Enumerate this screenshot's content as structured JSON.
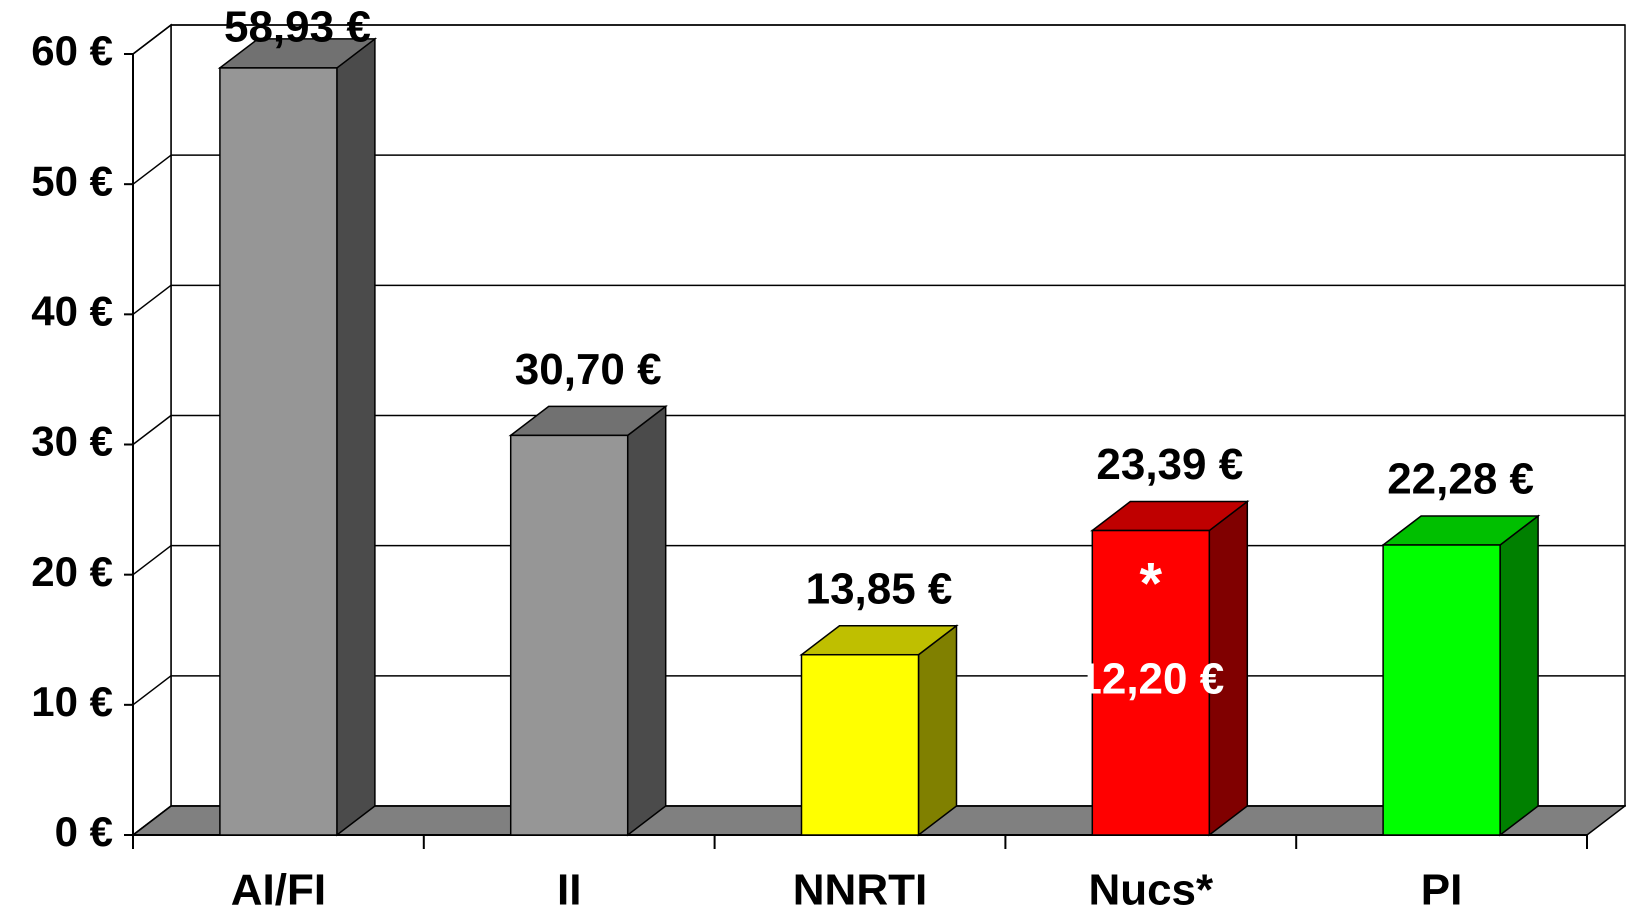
{
  "chart_data": {
    "type": "bar3d",
    "categories": [
      "AI/FI",
      "II",
      "NNRTI",
      "Nucs*",
      "PI"
    ],
    "values": [
      58.93,
      30.7,
      13.85,
      23.39,
      22.28
    ],
    "value_labels": [
      "58,93 €",
      "30,70 €",
      "13,85 €",
      "23,39 €",
      "22,28 €"
    ],
    "colors": [
      "#969696",
      "#969696",
      "#ffff00",
      "#ff0000",
      "#00ff00"
    ],
    "ylim": [
      0,
      60
    ],
    "yticks": [
      {
        "value": 0,
        "label": "0 €"
      },
      {
        "value": 10,
        "label": "10 €"
      },
      {
        "value": 20,
        "label": "20 €"
      },
      {
        "value": 30,
        "label": "30 €"
      },
      {
        "value": 40,
        "label": "40 €"
      },
      {
        "value": 50,
        "label": "50 €"
      },
      {
        "value": 60,
        "label": "60 €"
      }
    ],
    "grid": true,
    "annotations": [
      "*",
      "12,20 €"
    ]
  }
}
